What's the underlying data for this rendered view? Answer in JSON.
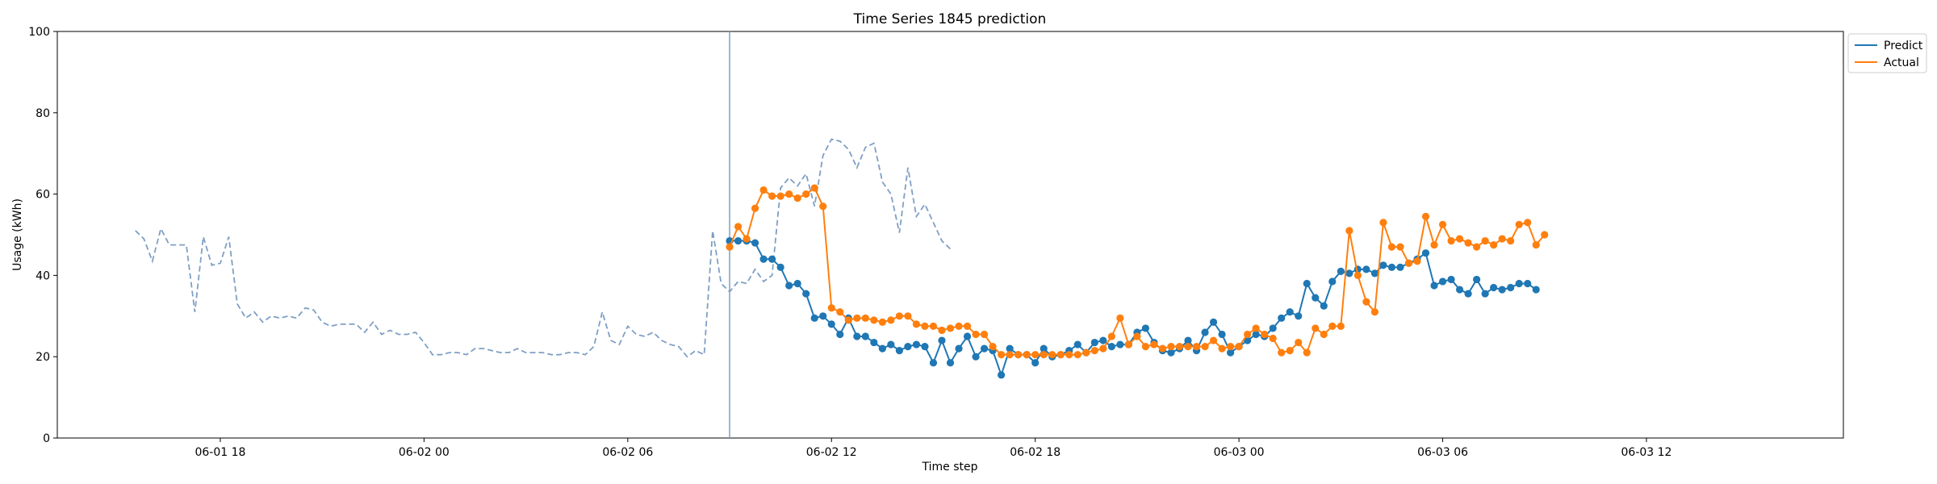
{
  "chart_data": {
    "type": "line",
    "title": "Time Series 1845 prediction",
    "xlabel": "Time step",
    "ylabel": "Usage (kWh)",
    "ylim": [
      0,
      100
    ],
    "yticks": [
      0,
      20,
      40,
      60,
      80,
      100
    ],
    "xticks": [
      "06-01 18",
      "06-02 00",
      "06-02 06",
      "06-02 12",
      "06-02 18",
      "06-03 00",
      "06-03 06",
      "06-03 12"
    ],
    "x_range_hours": [
      -4.8,
      47.8
    ],
    "grid": false,
    "legend_position": "upper-right-outside",
    "split_marker_hour": 15.0,
    "colors": {
      "predict": "#1f77b4",
      "actual": "#ff7f0e",
      "history": "#7f9fc4",
      "split_line": "#7f9fc4"
    },
    "history": {
      "start_hour": -2.5,
      "step_hours": 0.25,
      "values": [
        51,
        49,
        43.5,
        51.5,
        47.5,
        47.5,
        47.5,
        31,
        49.5,
        42.5,
        43,
        49.5,
        33,
        29.5,
        31,
        28.5,
        30,
        29.5,
        30,
        29.5,
        32,
        31.5,
        28.5,
        27.5,
        28,
        28,
        28,
        26,
        28.5,
        25.5,
        26.5,
        25.5,
        25.5,
        26,
        23.5,
        20.5,
        20.5,
        21,
        21,
        20.5,
        22,
        22,
        21.5,
        21,
        21,
        22,
        21,
        21,
        21,
        20.5,
        20.5,
        21,
        21,
        20.5,
        22.5,
        31,
        24,
        23,
        27.5,
        25.5,
        25,
        26,
        24,
        23,
        22.5,
        20,
        21.5,
        20.5,
        51,
        38,
        36,
        38.5,
        38,
        41.5,
        38.5,
        40,
        61.5,
        64,
        62,
        65,
        57,
        69.5,
        73.5,
        73,
        71,
        66.5,
        71.5,
        72.5,
        63,
        60,
        50.5,
        66.5,
        54.5,
        57.5,
        53,
        48.5,
        46.5
      ]
    },
    "series": [
      {
        "name": "Predict",
        "start_hour": 15.0,
        "step_hours": 0.25,
        "values": [
          48.5,
          48.5,
          48.5,
          48,
          44,
          44,
          42,
          37.5,
          38,
          35.5,
          29.5,
          30,
          28,
          25.5,
          29.5,
          25,
          25,
          23.5,
          22,
          23,
          21.5,
          22.5,
          23,
          22.5,
          18.5,
          24,
          18.5,
          22,
          25,
          20,
          22,
          21.5,
          15.5,
          22,
          20.5,
          20.5,
          18.5,
          22,
          20,
          20.5,
          21.5,
          23,
          21,
          23.5,
          24,
          22.5,
          23,
          23,
          26,
          27,
          23.5,
          21.5,
          21,
          22,
          24,
          21.5,
          26,
          28.5,
          25.5,
          21,
          22.5,
          24,
          25.5,
          25,
          27,
          29.5,
          31,
          30,
          38,
          34.5,
          32.5,
          38.5,
          41,
          40.5,
          41.5,
          41.5,
          40.5,
          42.5,
          42,
          42,
          43,
          44,
          45.5,
          37.5,
          38.5,
          39,
          36.5,
          35.5,
          39,
          35.5,
          37,
          36.5,
          37,
          38,
          38,
          36.5
        ]
      },
      {
        "name": "Actual",
        "start_hour": 15.0,
        "step_hours": 0.25,
        "values": [
          47,
          52,
          49,
          56.5,
          61,
          59.5,
          59.5,
          60,
          59,
          60,
          61.5,
          57,
          32,
          31,
          29,
          29.5,
          29.5,
          29,
          28.5,
          29,
          30,
          30,
          28,
          27.5,
          27.5,
          26.5,
          27,
          27.5,
          27.5,
          25.5,
          25.5,
          22.5,
          20.5,
          20.5,
          20.5,
          20.5,
          20.5,
          20.5,
          20.5,
          20.5,
          20.5,
          20.5,
          21,
          21.5,
          22,
          25,
          29.5,
          23,
          25,
          22.5,
          23,
          22,
          22.5,
          22.5,
          22.5,
          22.5,
          22.5,
          24,
          22,
          22.5,
          22.5,
          25.5,
          27,
          25.5,
          24.5,
          21,
          21.5,
          23.5,
          21,
          27,
          25.5,
          27.5,
          27.5,
          51,
          40,
          33.5,
          31,
          53,
          47,
          47,
          43,
          43.5,
          54.5,
          47.5,
          52.5,
          48.5,
          49,
          48,
          47,
          48.5,
          47.5,
          49,
          48.5,
          52.5,
          53,
          47.5,
          50
        ]
      }
    ]
  }
}
